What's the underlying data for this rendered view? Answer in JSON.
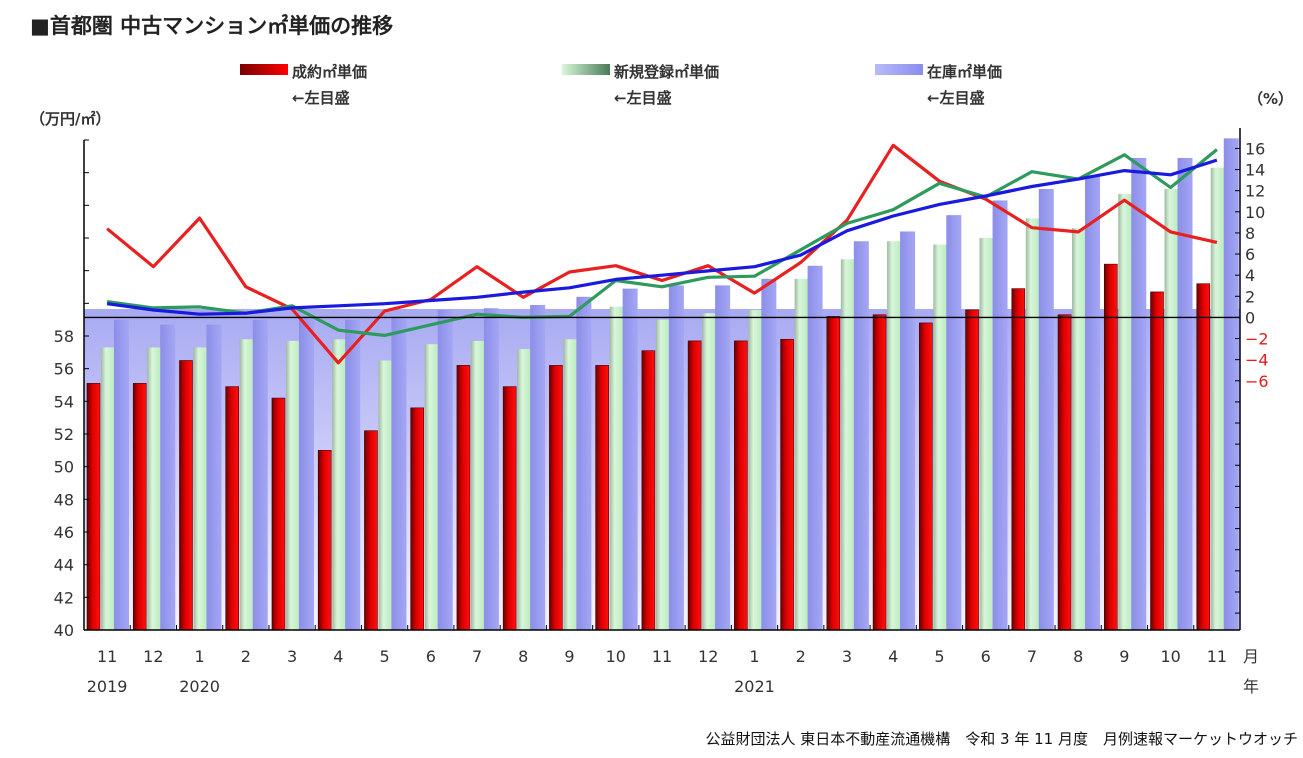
{
  "title": "■首都圏 中古マンション㎡単価の推移",
  "left_unit": "（万円/㎡）",
  "right_unit": "（%）",
  "footer": "公益財団法人 東日本不動産流通機構　令和 3 年 11 月度　月例速報マーケットウオッチ",
  "month_unit": "月",
  "year_unit": "年",
  "legend": [
    {
      "label": "成約㎡単価",
      "sub": "←左目盛",
      "color": "#e00000"
    },
    {
      "label": "新規登録㎡単価",
      "sub": "←左目盛",
      "color": "#3a9a6a"
    },
    {
      "label": "在庫㎡単価",
      "sub": "←左目盛",
      "color": "#9a9cf0"
    }
  ],
  "chart_data": {
    "type": "bar+line",
    "title": "首都圏 中古マンション㎡単価の推移",
    "categories": [
      "11",
      "12",
      "1",
      "2",
      "3",
      "4",
      "5",
      "6",
      "7",
      "8",
      "9",
      "10",
      "11",
      "12",
      "1",
      "2",
      "3",
      "4",
      "5",
      "6",
      "7",
      "8",
      "9",
      "10",
      "11"
    ],
    "years": [
      {
        "label": "2019",
        "index": 0
      },
      {
        "label": "2020",
        "index": 2
      },
      {
        "label": "2021",
        "index": 14
      }
    ],
    "ylabel_left": "万円/㎡",
    "ylabel_right": "%",
    "ylim_left": [
      40,
      70
    ],
    "yticks_left": [
      40,
      42,
      44,
      46,
      48,
      50,
      52,
      54,
      56,
      58
    ],
    "ylim_right": [
      -29.6,
      16.8
    ],
    "yticks_right": [
      16,
      14,
      12,
      10,
      8,
      6,
      4,
      2,
      0,
      -2,
      -4,
      -6
    ],
    "bar_series": [
      {
        "name": "成約㎡単価",
        "color": "#e00000",
        "values": [
          55.1,
          55.1,
          56.5,
          54.9,
          54.2,
          51.0,
          52.2,
          53.6,
          56.2,
          54.9,
          56.2,
          56.2,
          57.1,
          57.7,
          57.7,
          57.8,
          59.2,
          59.3,
          58.8,
          59.6,
          60.9,
          59.3,
          62.4,
          60.7,
          61.2
        ]
      },
      {
        "name": "新規登録㎡単価",
        "color": "#bfeec5",
        "values": [
          57.3,
          57.3,
          57.3,
          57.8,
          57.7,
          57.8,
          56.5,
          57.5,
          57.7,
          57.2,
          57.8,
          59.8,
          59.0,
          59.4,
          59.6,
          61.5,
          62.7,
          63.8,
          63.6,
          64.0,
          65.2,
          64.6,
          66.7,
          67.0,
          68.3
        ]
      },
      {
        "name": "在庫㎡単価",
        "color": "#9a9cf0",
        "values": [
          59.0,
          58.7,
          58.7,
          59.0,
          59.1,
          59.0,
          59.1,
          59.6,
          59.7,
          59.9,
          60.4,
          60.9,
          61.1,
          61.1,
          61.5,
          62.3,
          63.8,
          64.4,
          65.4,
          66.3,
          67.0,
          67.8,
          68.9,
          68.9,
          70.1
        ]
      }
    ],
    "line_series": [
      {
        "name": "成約㎡単価 前年比",
        "color": "#e82020",
        "values": [
          8.4,
          4.8,
          9.4,
          2.9,
          0.8,
          -4.3,
          0.6,
          1.7,
          4.8,
          1.9,
          4.3,
          4.9,
          3.5,
          4.9,
          2.3,
          5.2,
          9.2,
          16.3,
          12.9,
          11.2,
          8.5,
          8.1,
          11.1,
          8.1,
          7.1
        ]
      },
      {
        "name": "新規登録㎡単価 前年比",
        "color": "#2e9a5e",
        "values": [
          1.5,
          0.9,
          1.0,
          0.4,
          1.1,
          -1.2,
          -1.7,
          -0.7,
          0.3,
          0.0,
          0.1,
          3.5,
          2.9,
          3.8,
          3.9,
          6.4,
          8.9,
          10.2,
          12.7,
          11.4,
          13.8,
          13.1,
          15.4,
          12.3,
          15.9
        ]
      },
      {
        "name": "在庫㎡単価 前年比",
        "color": "#1a1adf",
        "values": [
          1.3,
          0.7,
          0.3,
          0.4,
          0.9,
          1.1,
          1.3,
          1.6,
          1.9,
          2.4,
          2.8,
          3.6,
          4.0,
          4.4,
          4.8,
          5.9,
          8.2,
          9.6,
          10.7,
          11.5,
          12.4,
          13.1,
          13.9,
          13.5,
          14.9
        ]
      }
    ],
    "legend_position": "top",
    "grid": false
  }
}
